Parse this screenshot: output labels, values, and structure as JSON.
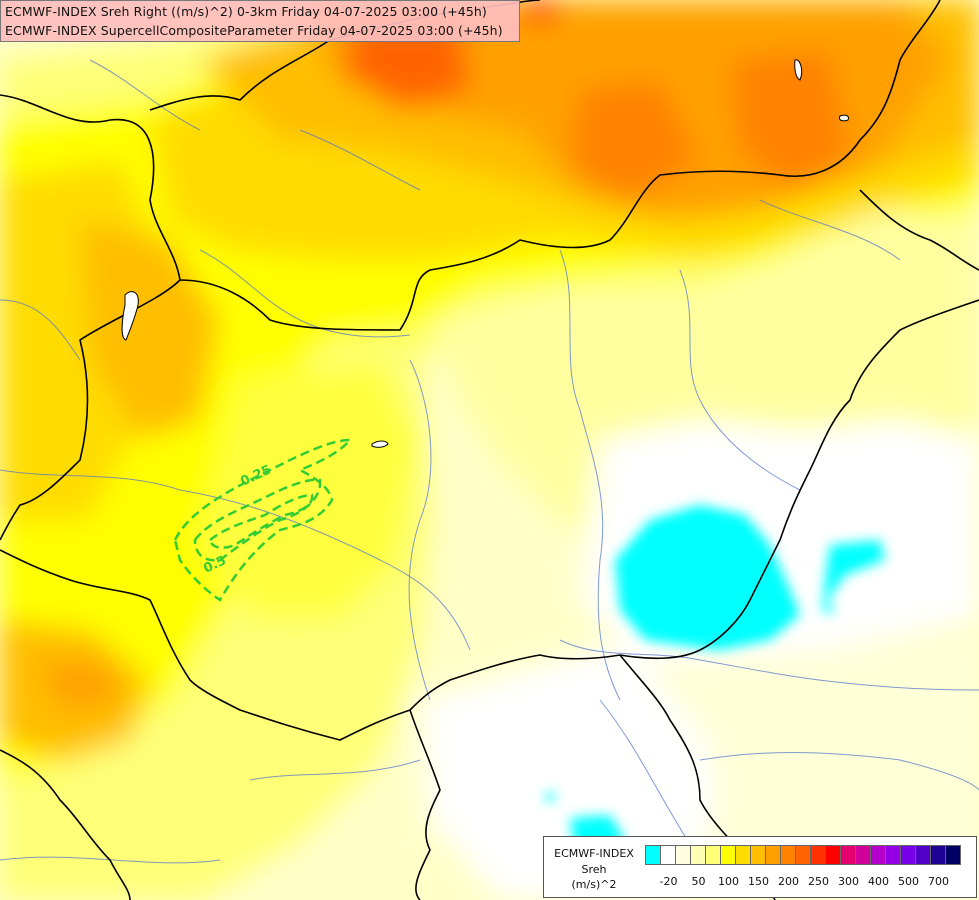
{
  "title": {
    "line1": "ECMWF-INDEX Sreh Right ((m/s)^2) 0-3km Friday 04-07-2025 03:00 (+45h)",
    "line2": "ECMWF-INDEX SupercellCompositeParameter Friday 04-07-2025 03:00 (+45h)"
  },
  "contour_labels": [
    "0.25",
    "0.5"
  ],
  "legend": {
    "title_line1": "ECMWF-INDEX",
    "title_line2": "Sreh",
    "title_line3": "(m/s)^2",
    "colors": [
      "#00ffff",
      "#ffffff",
      "#ffffe0",
      "#ffffb4",
      "#ffff78",
      "#ffff00",
      "#ffdc00",
      "#ffbe00",
      "#ffa000",
      "#ff8200",
      "#ff6400",
      "#ff3200",
      "#ff0000",
      "#e6006e",
      "#d2009b",
      "#b400c8",
      "#9600e6",
      "#7800e6",
      "#5000c8",
      "#1e0096",
      "#000064"
    ],
    "ticks": [
      {
        "label": "-20",
        "index": 1
      },
      {
        "label": "50",
        "index": 3
      },
      {
        "label": "100",
        "index": 5
      },
      {
        "label": "150",
        "index": 7
      },
      {
        "label": "200",
        "index": 9
      },
      {
        "label": "250",
        "index": 11
      },
      {
        "label": "300",
        "index": 13
      },
      {
        "label": "400",
        "index": 15
      },
      {
        "label": "500",
        "index": 17
      },
      {
        "label": "700",
        "index": 19
      }
    ]
  }
}
